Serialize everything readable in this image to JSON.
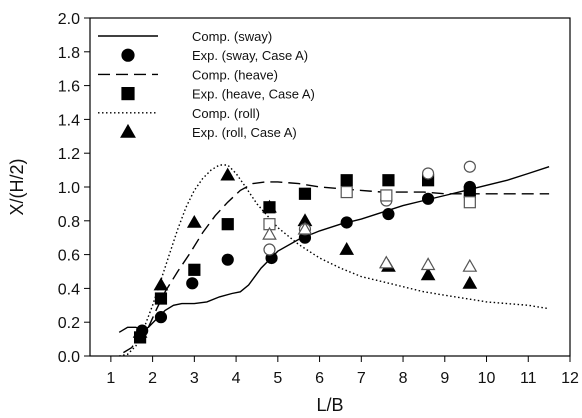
{
  "chart_data": {
    "type": "scatter",
    "title": "",
    "xlabel": "L/B",
    "ylabel": "X/(H/2)",
    "xlim": [
      0.5,
      12
    ],
    "ylim": [
      0,
      2.0
    ],
    "xticks": [
      1,
      2,
      3,
      4,
      5,
      6,
      7,
      8,
      9,
      10,
      11,
      12
    ],
    "yticks": [
      0.0,
      0.2,
      0.4,
      0.6,
      0.8,
      1.0,
      1.2,
      1.4,
      1.6,
      1.8,
      2.0
    ],
    "ytick_labels": [
      "0.0",
      "0.2",
      "0.4",
      "0.6",
      "0.8",
      "1.0",
      "1.2",
      "1.4",
      "1.6",
      "1.8",
      "2.0"
    ],
    "grid": false,
    "legend_position": "top-left",
    "legend": [
      "Comp. (sway)",
      "Exp. (sway, Case A)",
      "Comp. (heave)",
      "Exp. (heave, Case A)",
      "Comp. (roll)",
      "Exp. (roll, Case A)"
    ],
    "series": [
      {
        "name": "Comp. (sway)",
        "kind": "line",
        "style": "solid",
        "x": [
          1.2,
          1.4,
          1.6,
          1.75,
          1.9,
          2.1,
          2.3,
          2.5,
          2.7,
          3.0,
          3.3,
          3.6,
          3.9,
          4.1,
          4.3,
          4.6,
          5.0,
          5.5,
          6.0,
          6.5,
          7.0,
          7.5,
          8.0,
          8.5,
          9.0,
          9.5,
          10.0,
          10.5,
          11.0,
          11.5
        ],
        "y": [
          0.14,
          0.17,
          0.17,
          0.15,
          0.17,
          0.22,
          0.27,
          0.3,
          0.31,
          0.31,
          0.32,
          0.35,
          0.37,
          0.38,
          0.42,
          0.52,
          0.62,
          0.69,
          0.74,
          0.78,
          0.81,
          0.85,
          0.89,
          0.92,
          0.95,
          0.98,
          1.01,
          1.04,
          1.08,
          1.12
        ]
      },
      {
        "name": "Comp. (heave)",
        "kind": "line",
        "style": "dashed",
        "x": [
          1.3,
          1.5,
          1.7,
          1.9,
          2.1,
          2.3,
          2.6,
          2.9,
          3.2,
          3.5,
          3.8,
          4.1,
          4.4,
          4.7,
          5.0,
          5.5,
          6.0,
          6.5,
          7.0,
          7.5,
          8.0,
          8.5,
          9.0,
          9.5,
          10.0,
          10.5,
          11.0,
          11.5
        ],
        "y": [
          0.02,
          0.05,
          0.12,
          0.17,
          0.28,
          0.38,
          0.5,
          0.61,
          0.73,
          0.83,
          0.91,
          0.98,
          1.02,
          1.03,
          1.03,
          1.02,
          1.0,
          0.99,
          0.98,
          0.97,
          0.97,
          0.97,
          0.96,
          0.96,
          0.96,
          0.96,
          0.96,
          0.96
        ]
      },
      {
        "name": "Comp. (roll)",
        "kind": "line",
        "style": "dotted",
        "x": [
          1.2,
          1.4,
          1.6,
          1.8,
          2.0,
          2.2,
          2.4,
          2.6,
          2.8,
          3.0,
          3.2,
          3.4,
          3.6,
          3.8,
          4.0,
          4.2,
          4.5,
          5.0,
          5.5,
          6.0,
          6.5,
          7.0,
          7.5,
          8.0,
          8.5,
          9.0,
          9.5,
          10.0,
          10.5,
          11.0,
          11.5
        ],
        "y": [
          0.0,
          0.01,
          0.06,
          0.17,
          0.3,
          0.45,
          0.6,
          0.75,
          0.88,
          0.98,
          1.05,
          1.1,
          1.13,
          1.13,
          1.08,
          1.01,
          0.9,
          0.76,
          0.66,
          0.58,
          0.52,
          0.47,
          0.44,
          0.41,
          0.38,
          0.36,
          0.34,
          0.32,
          0.31,
          0.3,
          0.28
        ]
      },
      {
        "name": "Exp. (sway, Case A)",
        "kind": "marker",
        "marker": "circle",
        "filled": true,
        "x": [
          1.75,
          2.2,
          2.95,
          3.8,
          4.85,
          5.65,
          6.65,
          7.65,
          8.6,
          9.6
        ],
        "y": [
          0.15,
          0.23,
          0.43,
          0.57,
          0.58,
          0.7,
          0.79,
          0.84,
          0.93,
          1.0
        ]
      },
      {
        "name": "Exp. (heave, Case A)",
        "kind": "marker",
        "marker": "square",
        "filled": true,
        "x": [
          1.7,
          2.2,
          3.0,
          3.8,
          4.8,
          5.65,
          6.65,
          7.65,
          8.6,
          9.6
        ],
        "y": [
          0.11,
          0.34,
          0.51,
          0.78,
          0.88,
          0.96,
          1.04,
          1.04,
          1.04,
          0.97
        ]
      },
      {
        "name": "Exp. (roll, Case A)",
        "kind": "marker",
        "marker": "triangle",
        "filled": true,
        "x": [
          1.7,
          2.2,
          3.0,
          3.8,
          4.8,
          5.65,
          6.65,
          7.65,
          8.6,
          9.6
        ],
        "y": [
          0.14,
          0.42,
          0.79,
          1.07,
          0.88,
          0.8,
          0.63,
          0.53,
          0.48,
          0.43
        ]
      },
      {
        "kind": "marker",
        "marker": "circle",
        "filled": false,
        "x": [
          4.8,
          5.65,
          7.6,
          8.6,
          9.6
        ],
        "y": [
          0.63,
          0.75,
          0.92,
          1.08,
          1.12
        ]
      },
      {
        "kind": "marker",
        "marker": "square",
        "filled": false,
        "x": [
          4.8,
          6.65,
          7.6,
          9.6
        ],
        "y": [
          0.78,
          0.97,
          0.95,
          0.91
        ]
      },
      {
        "kind": "marker",
        "marker": "triangle",
        "filled": false,
        "x": [
          4.8,
          5.65,
          7.6,
          8.6,
          9.6
        ],
        "y": [
          0.72,
          0.75,
          0.55,
          0.54,
          0.53
        ]
      }
    ]
  }
}
